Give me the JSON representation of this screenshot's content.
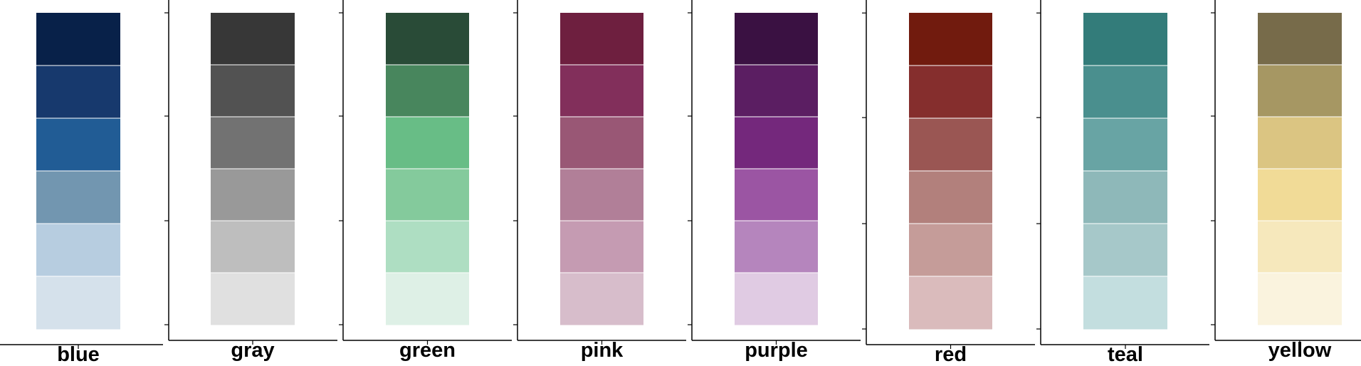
{
  "chart_data": [
    {
      "type": "heatmap",
      "xlabel": "blue",
      "colors": [
        "#082149",
        "#17396D",
        "#215C95",
        "#7296B0",
        "#B7CDE0",
        "#D5E1EB"
      ]
    },
    {
      "type": "heatmap",
      "xlabel": "gray",
      "colors": [
        "#373737",
        "#525252",
        "#727272",
        "#999999",
        "#BEBEBE",
        "#E0E0E0"
      ]
    },
    {
      "type": "heatmap",
      "xlabel": "green",
      "colors": [
        "#294B37",
        "#48865D",
        "#68BD86",
        "#84CA9C",
        "#AEDEC2",
        "#DEF0E6"
      ]
    },
    {
      "type": "heatmap",
      "xlabel": "pink",
      "colors": [
        "#6E1F3F",
        "#822F5B",
        "#995775",
        "#B17F98",
        "#C59BB2",
        "#D7BDCB"
      ]
    },
    {
      "type": "heatmap",
      "xlabel": "purple",
      "colors": [
        "#3A1142",
        "#5B1E62",
        "#74287C",
        "#9B55A3",
        "#B585BD",
        "#E0CBE3"
      ]
    },
    {
      "type": "heatmap",
      "xlabel": "red",
      "colors": [
        "#711B0E",
        "#852E2D",
        "#9A5653",
        "#B2807C",
        "#C59C99",
        "#DABBBC"
      ]
    },
    {
      "type": "heatmap",
      "xlabel": "teal",
      "colors": [
        "#337C7A",
        "#4A8F8E",
        "#68A4A4",
        "#8EB8B9",
        "#A6C8C9",
        "#C3DEDF"
      ]
    },
    {
      "type": "heatmap",
      "xlabel": "yellow",
      "colors": [
        "#776B4A",
        "#A69763",
        "#DBC582",
        "#F1DB97",
        "#F6E8BC",
        "#FAF3DE"
      ]
    }
  ]
}
